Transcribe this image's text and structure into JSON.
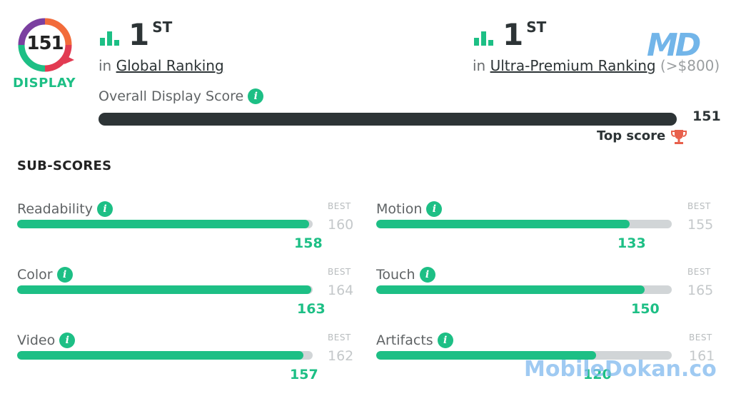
{
  "badge": {
    "score": "151",
    "label": "DISPLAY"
  },
  "rankings": [
    {
      "num": "1",
      "sup": "ST",
      "prefix": "in ",
      "link": "Global Ranking",
      "extra": ""
    },
    {
      "num": "1",
      "sup": "ST",
      "prefix": "in ",
      "link": "Ultra-Premium Ranking",
      "extra": " (>$800)"
    }
  ],
  "overall": {
    "label": "Overall Display Score",
    "value": "151",
    "top_label": "Top score",
    "fraction": 1.0
  },
  "subscores": {
    "title": "SUB-SCORES",
    "best_label": "BEST",
    "items": [
      {
        "label": "Readability",
        "best": "160",
        "value": "158",
        "fraction": 0.9875
      },
      {
        "label": "Motion",
        "best": "155",
        "value": "133",
        "fraction": 0.858
      },
      {
        "label": "Color",
        "best": "164",
        "value": "163",
        "fraction": 0.994
      },
      {
        "label": "Touch",
        "best": "165",
        "value": "150",
        "fraction": 0.909
      },
      {
        "label": "Video",
        "best": "162",
        "value": "157",
        "fraction": 0.969
      },
      {
        "label": "Artifacts",
        "best": "161",
        "value": "120",
        "fraction": 0.745
      }
    ]
  },
  "watermarks": {
    "logo": "MD",
    "site": "MobileDokan.co"
  },
  "colors": {
    "accent": "#1dbf85",
    "dark": "#2d3436",
    "track": "#d1d5d7",
    "ring_orange": "#f26b3a",
    "ring_purple": "#7b3fa0",
    "trophy": "#e8604c"
  }
}
